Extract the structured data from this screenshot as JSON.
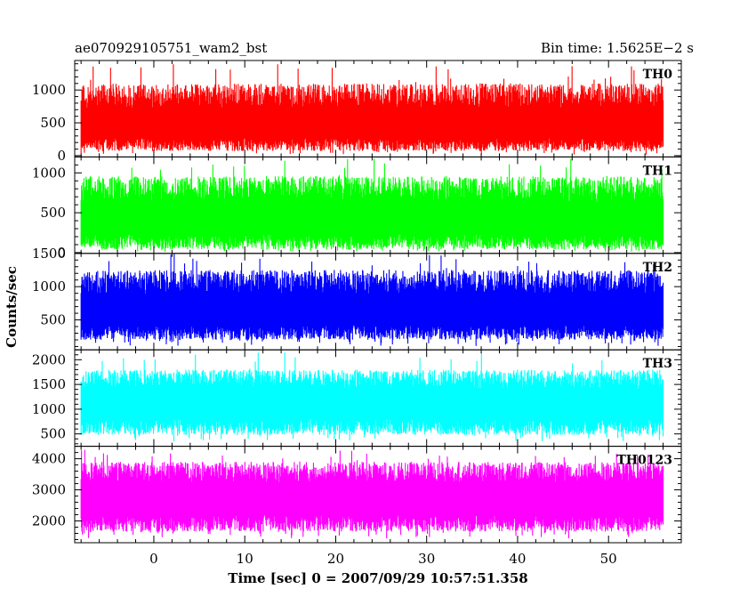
{
  "chart_data": {
    "type": "line",
    "title_left": "ae070929105751_wam2_bst",
    "title_right": "Bin time: 1.5625E−2 s",
    "xlabel": "Time [sec] 0 = 2007/09/29 10:57:51.358",
    "ylabel": "Counts/sec",
    "xlim": [
      -8.7,
      58.0
    ],
    "x_ticks": [
      0,
      10,
      20,
      30,
      40,
      50
    ],
    "data_x_range": [
      -8.0,
      56.0
    ],
    "bin_time_s": 0.015625,
    "panels": [
      {
        "name": "TH0",
        "color": "#ff0000",
        "ylim": [
          -20,
          1450
        ],
        "y_ticks": [
          0,
          500,
          1000
        ],
        "baseline": 70,
        "mean": 520,
        "peak": 1100,
        "spike": 1400,
        "series": []
      },
      {
        "name": "TH1",
        "color": "#00ff00",
        "ylim": [
          -10,
          1200
        ],
        "y_ticks": [
          0,
          500,
          1000
        ],
        "baseline": 40,
        "mean": 460,
        "peak": 960,
        "spike": 1180,
        "series": []
      },
      {
        "name": "TH2",
        "color": "#0000ff",
        "ylim": [
          50,
          1500
        ],
        "y_ticks": [
          500,
          1000,
          1500
        ],
        "baseline": 200,
        "mean": 690,
        "peak": 1250,
        "spike": 1500,
        "series": []
      },
      {
        "name": "TH3",
        "color": "#00ffff",
        "ylim": [
          250,
          2200
        ],
        "y_ticks": [
          500,
          1000,
          1500,
          2000
        ],
        "baseline": 480,
        "mean": 1200,
        "peak": 1800,
        "spike": 2150,
        "series": []
      },
      {
        "name": "TH0123",
        "color": "#ff00ff",
        "ylim": [
          1300,
          4400
        ],
        "y_ticks": [
          2000,
          3000,
          4000
        ],
        "baseline": 1650,
        "mean": 2850,
        "peak": 3900,
        "spike": 4300,
        "series": []
      }
    ]
  }
}
